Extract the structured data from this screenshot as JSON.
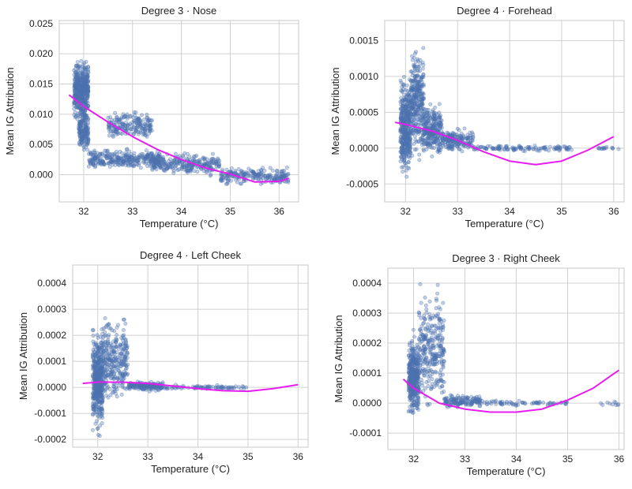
{
  "colors": {
    "points": "#4C72B0",
    "fit": "#e81cf0",
    "grid": "#d0d0d0"
  },
  "chart_data": [
    {
      "type": "scatter",
      "title": "Degree 3 · Nose",
      "xlabel": "Temperature (°C)",
      "ylabel": "Mean IG Attribution",
      "xlim": [
        31.5,
        36.4
      ],
      "ylim": [
        -0.0045,
        0.0255
      ],
      "xticks": [
        "32",
        "33",
        "34",
        "35",
        "36"
      ],
      "xtick_values": [
        32,
        33,
        34,
        35,
        36
      ],
      "yticks": [
        "0.000",
        "0.005",
        "0.010",
        "0.015",
        "0.020",
        "0.025"
      ],
      "ytick_values": [
        0,
        0.005,
        0.01,
        0.015,
        0.02,
        0.025
      ],
      "grid": true,
      "fit": {
        "degree": 3,
        "x": [
          31.7,
          32.0,
          32.5,
          33.0,
          33.5,
          34.0,
          34.5,
          35.0,
          35.5,
          36.0,
          36.2
        ],
        "y": [
          0.0132,
          0.0113,
          0.0087,
          0.0063,
          0.0042,
          0.0025,
          0.0011,
          0.0001,
          -0.0012,
          -0.0011,
          -0.0006
        ]
      },
      "clusters": [
        {
          "x": [
            31.8,
            32.1
          ],
          "y": [
            0.008,
            0.02
          ],
          "n": 450
        },
        {
          "x": [
            31.9,
            32.1
          ],
          "y": [
            0.003,
            0.011
          ],
          "n": 160
        },
        {
          "x": [
            32.1,
            33.6
          ],
          "y": [
            0.0005,
            0.0045
          ],
          "n": 320
        },
        {
          "x": [
            32.5,
            33.4
          ],
          "y": [
            0.0055,
            0.011
          ],
          "n": 200
        },
        {
          "x": [
            33.4,
            34.8
          ],
          "y": [
            -0.0005,
            0.004
          ],
          "n": 260
        },
        {
          "x": [
            34.8,
            36.2
          ],
          "y": [
            -0.002,
            0.0015
          ],
          "n": 220
        }
      ]
    },
    {
      "type": "scatter",
      "title": "Degree 4 · Forehead",
      "xlabel": "Temperature (°C)",
      "ylabel": "Mean IG Attribution",
      "xlim": [
        31.6,
        36.2
      ],
      "ylim": [
        -0.00075,
        0.00178
      ],
      "xticks": [
        "32",
        "33",
        "34",
        "35",
        "36"
      ],
      "xtick_values": [
        32,
        33,
        34,
        35,
        36
      ],
      "yticks": [
        "-0.0005",
        "0.0000",
        "0.0005",
        "0.0010",
        "0.0015"
      ],
      "ytick_values": [
        -0.0005,
        0,
        0.0005,
        0.001,
        0.0015
      ],
      "grid": true,
      "fit": {
        "degree": 4,
        "x": [
          31.8,
          32.0,
          32.5,
          33.0,
          33.5,
          34.0,
          34.5,
          35.0,
          35.5,
          36.0
        ],
        "y": [
          0.00036,
          0.00033,
          0.00024,
          0.00011,
          -5e-05,
          -0.00018,
          -0.00023,
          -0.00018,
          -3e-05,
          0.00016
        ]
      },
      "clusters": [
        {
          "x": [
            31.9,
            32.1
          ],
          "y": [
            -0.0005,
            0.0011
          ],
          "n": 380
        },
        {
          "x": [
            32.1,
            32.35
          ],
          "y": [
            -0.0003,
            0.0016
          ],
          "n": 320
        },
        {
          "x": [
            32.35,
            32.7
          ],
          "y": [
            -0.0002,
            0.0007
          ],
          "n": 260
        },
        {
          "x": [
            32.7,
            33.3
          ],
          "y": [
            -0.0001,
            0.0003
          ],
          "n": 180
        },
        {
          "x": [
            33.3,
            35.2
          ],
          "y": [
            -5e-05,
            5e-05
          ],
          "n": 120
        },
        {
          "x": [
            35.7,
            36.1
          ],
          "y": [
            -3e-05,
            3e-05
          ],
          "n": 15
        }
      ]
    },
    {
      "type": "scatter",
      "title": "Degree 4 · Left Cheek",
      "xlabel": "Temperature (°C)",
      "ylabel": "Mean IG Attribution",
      "xlim": [
        31.5,
        36.2
      ],
      "ylim": [
        -0.00023,
        0.00047
      ],
      "xticks": [
        "32",
        "33",
        "34",
        "35",
        "36"
      ],
      "xtick_values": [
        32,
        33,
        34,
        35,
        36
      ],
      "yticks": [
        "-0.0002",
        "-0.0001",
        "0.0000",
        "0.0001",
        "0.0002",
        "0.0003",
        "0.0004"
      ],
      "ytick_values": [
        -0.0002,
        -0.0001,
        0,
        0.0001,
        0.0002,
        0.0003,
        0.0004
      ],
      "grid": true,
      "fit": {
        "degree": 4,
        "x": [
          31.7,
          32.0,
          32.5,
          33.0,
          33.5,
          34.0,
          34.5,
          35.0,
          35.5,
          36.0
        ],
        "y": [
          1.5e-05,
          2e-05,
          2e-05,
          1.5e-05,
          5e-06,
          -5e-06,
          -1.3e-05,
          -1.5e-05,
          -5e-06,
          1e-05
        ]
      },
      "clusters": [
        {
          "x": [
            31.9,
            32.1
          ],
          "y": [
            -0.0002,
            0.00025
          ],
          "n": 420
        },
        {
          "x": [
            32.1,
            32.6
          ],
          "y": [
            -0.0001,
            0.0003
          ],
          "n": 300
        },
        {
          "x": [
            32.6,
            33.3
          ],
          "y": [
            -2e-05,
            3e-05
          ],
          "n": 160
        },
        {
          "x": [
            33.3,
            35.0
          ],
          "y": [
            -1e-05,
            1e-05
          ],
          "n": 80
        }
      ]
    },
    {
      "type": "scatter",
      "title": "Degree 3 · Right Cheek",
      "xlabel": "Temperature (°C)",
      "ylabel": "Mean IG Attribution",
      "xlim": [
        31.5,
        36.1
      ],
      "ylim": [
        -0.000155,
        0.00045
      ],
      "xticks": [
        "32",
        "33",
        "34",
        "35",
        "36"
      ],
      "xtick_values": [
        32,
        33,
        34,
        35,
        36
      ],
      "yticks": [
        "-0.0001",
        "0.0000",
        "0.0001",
        "0.0002",
        "0.0003",
        "0.0004"
      ],
      "ytick_values": [
        -0.0001,
        0,
        0.0001,
        0.0002,
        0.0003,
        0.0004
      ],
      "grid": true,
      "fit": {
        "degree": 3,
        "x": [
          31.8,
          32.0,
          32.5,
          33.0,
          33.5,
          34.0,
          34.5,
          35.0,
          35.5,
          36.0
        ],
        "y": [
          8e-05,
          5e-05,
          0.0,
          -2e-05,
          -3e-05,
          -3e-05,
          -2e-05,
          1e-05,
          5e-05,
          0.00011
        ]
      },
      "clusters": [
        {
          "x": [
            31.9,
            32.1
          ],
          "y": [
            -7e-05,
            0.00025
          ],
          "n": 360
        },
        {
          "x": [
            32.1,
            32.6
          ],
          "y": [
            -5e-05,
            0.00042
          ],
          "n": 300
        },
        {
          "x": [
            32.6,
            33.3
          ],
          "y": [
            -2e-05,
            3e-05
          ],
          "n": 140
        },
        {
          "x": [
            33.3,
            35.0
          ],
          "y": [
            -1e-05,
            1e-05
          ],
          "n": 70
        },
        {
          "x": [
            35.6,
            36.0
          ],
          "y": [
            -1e-05,
            1e-05
          ],
          "n": 10
        }
      ]
    }
  ]
}
